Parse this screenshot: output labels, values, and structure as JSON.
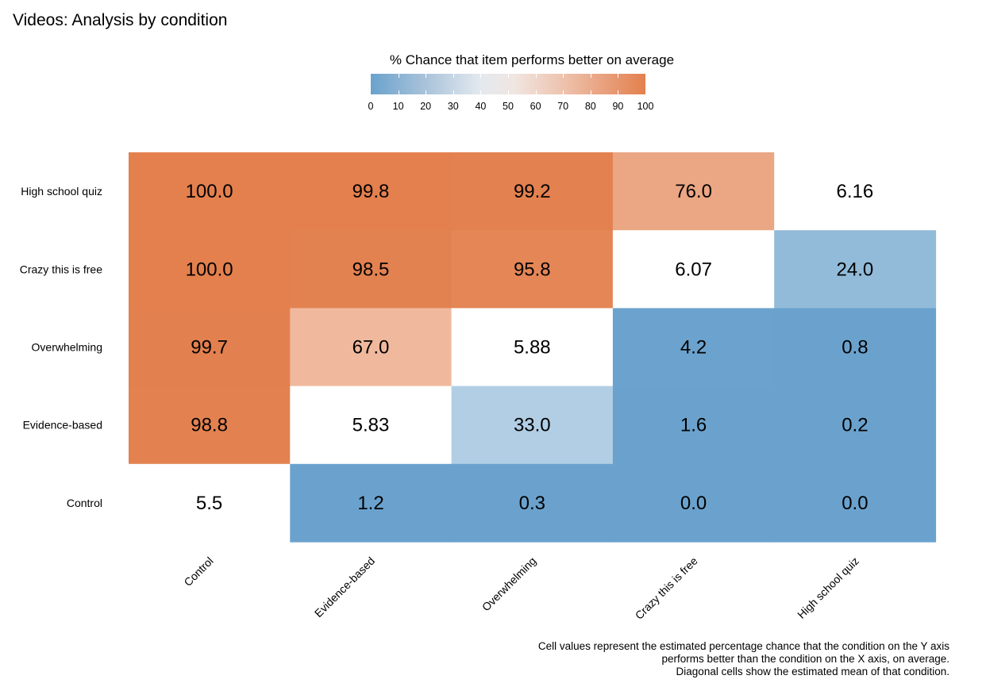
{
  "title": "Videos: Analysis by condition",
  "chart_data": {
    "type": "heatmap",
    "title": "Videos: Analysis by condition",
    "legend": {
      "title": "% Chance that item performs better on average",
      "ticks": [
        "0",
        "10",
        "20",
        "30",
        "40",
        "50",
        "60",
        "70",
        "80",
        "90",
        "100"
      ],
      "range": [
        0,
        100
      ],
      "placement": "top-center",
      "color_low": "#6aa2cd",
      "color_mid": "#ffffff",
      "color_high": "#e3804e"
    },
    "x_categories": [
      "Control",
      "Evidence-based",
      "Overwhelming",
      "Crazy this is free",
      "High school quiz"
    ],
    "y_categories": [
      "High school quiz",
      "Crazy this is free",
      "Overwhelming",
      "Evidence-based",
      "Control"
    ],
    "cells": [
      [
        "100.0",
        "99.8",
        "99.2",
        "76.0",
        "6.16"
      ],
      [
        "100.0",
        "98.5",
        "95.8",
        "6.07",
        "24.0"
      ],
      [
        "99.7",
        "67.0",
        "5.88",
        "4.2",
        "0.8"
      ],
      [
        "98.8",
        "5.83",
        "33.0",
        "1.6",
        "0.2"
      ],
      [
        "5.5",
        "1.2",
        "0.3",
        "0.0",
        "0.0"
      ]
    ],
    "diagonal_is_mean": true
  },
  "caption": [
    "Cell values represent the estimated percentage chance that the condition on the Y axis",
    "performs better than the condition on the X axis, on average.",
    "Diagonal cells show the estimated mean of that condition."
  ]
}
